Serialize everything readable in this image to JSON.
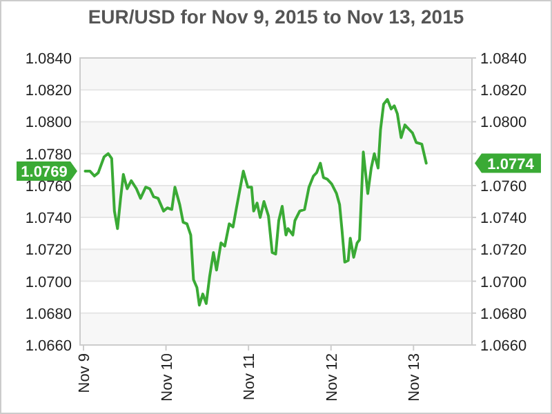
{
  "chart_data": {
    "type": "line",
    "title": "EUR/USD for Nov 9, 2015 to Nov 13, 2015",
    "x": [
      "2015-11-09T00:30",
      "2015-11-09T01:54",
      "2015-11-09T03:12",
      "2015-11-09T04:18",
      "2015-11-09T06:00",
      "2015-11-09T07:12",
      "2015-11-09T08:12",
      "2015-11-09T09:00",
      "2015-11-09T09:54",
      "2015-11-09T10:48",
      "2015-11-09T11:36",
      "2015-11-09T12:42",
      "2015-11-09T13:54",
      "2015-11-09T15:24",
      "2015-11-09T16:36",
      "2015-11-09T18:06",
      "2015-11-09T19:18",
      "2015-11-09T20:24",
      "2015-11-09T21:42",
      "2015-11-09T23:18",
      "2015-11-10T00:24",
      "2015-11-10T01:42",
      "2015-11-10T02:36",
      "2015-11-10T04:00",
      "2015-11-10T05:00",
      "2015-11-10T06:06",
      "2015-11-10T07:12",
      "2015-11-10T08:00",
      "2015-11-10T09:00",
      "2015-11-10T09:42",
      "2015-11-10T10:42",
      "2015-11-10T11:42",
      "2015-11-10T12:42",
      "2015-11-10T13:48",
      "2015-11-10T14:42",
      "2015-11-10T16:00",
      "2015-11-10T17:06",
      "2015-11-10T18:24",
      "2015-11-10T19:30",
      "2015-11-10T20:30",
      "2015-11-10T22:30",
      "2015-11-10T23:48",
      "2015-11-11T00:54",
      "2015-11-11T01:30",
      "2015-11-11T02:30",
      "2015-11-11T03:24",
      "2015-11-11T04:30",
      "2015-11-11T05:48",
      "2015-11-11T06:54",
      "2015-11-11T07:54",
      "2015-11-11T08:48",
      "2015-11-11T09:48",
      "2015-11-11T10:54",
      "2015-11-11T11:30",
      "2015-11-11T12:54",
      "2015-11-11T13:30",
      "2015-11-11T14:54",
      "2015-11-11T16:18",
      "2015-11-11T17:36",
      "2015-11-11T18:54",
      "2015-11-11T19:48",
      "2015-11-11T20:54",
      "2015-11-11T21:48",
      "2015-11-11T22:54",
      "2015-11-12T00:12",
      "2015-11-12T01:36",
      "2015-11-12T02:30",
      "2015-11-12T03:12",
      "2015-11-12T04:00",
      "2015-11-12T05:00",
      "2015-11-12T05:36",
      "2015-11-12T06:36",
      "2015-11-12T07:36",
      "2015-11-12T08:18",
      "2015-11-12T09:24",
      "2015-11-12T10:42",
      "2015-11-12T11:42",
      "2015-11-12T12:36",
      "2015-11-12T13:42",
      "2015-11-12T14:24",
      "2015-11-12T15:18",
      "2015-11-12T16:24",
      "2015-11-12T17:30",
      "2015-11-12T18:24",
      "2015-11-12T19:18",
      "2015-11-12T20:24",
      "2015-11-12T21:30",
      "2015-11-12T22:48",
      "2015-11-12T23:42",
      "2015-11-13T00:48",
      "2015-11-13T02:24",
      "2015-11-13T03:42"
    ],
    "series": [
      {
        "color": "#3aaa35",
        "values": [
          1.0769,
          1.0769,
          1.0766,
          1.0768,
          1.0778,
          1.078,
          1.0777,
          1.0744,
          1.0733,
          1.0752,
          1.0767,
          1.0758,
          1.0763,
          1.0758,
          1.0752,
          1.0759,
          1.0758,
          1.0753,
          1.0752,
          1.0744,
          1.0746,
          1.0745,
          1.0759,
          1.0748,
          1.0737,
          1.0736,
          1.0729,
          1.0701,
          1.0696,
          1.0685,
          1.0692,
          1.0686,
          1.0703,
          1.0718,
          1.0707,
          1.0724,
          1.0722,
          1.0736,
          1.0734,
          1.0746,
          1.0769,
          1.0759,
          1.0759,
          1.0744,
          1.0749,
          1.074,
          1.075,
          1.0741,
          1.0718,
          1.0717,
          1.0738,
          1.0747,
          1.0729,
          1.0733,
          1.0729,
          1.0738,
          1.0744,
          1.0745,
          1.0759,
          1.0766,
          1.0768,
          1.0774,
          1.0765,
          1.0764,
          1.0761,
          1.0755,
          1.0748,
          1.0732,
          1.0712,
          1.0713,
          1.0727,
          1.0715,
          1.0724,
          1.0726,
          1.0781,
          1.0755,
          1.0771,
          1.078,
          1.0771,
          1.0795,
          1.0811,
          1.0814,
          1.0808,
          1.081,
          1.0805,
          1.079,
          1.0798,
          1.0795,
          1.0793,
          1.0787,
          1.0786,
          1.0774
        ]
      }
    ],
    "xlim": [
      "2015-11-08T23:00",
      "2015-11-13T17:00"
    ],
    "xticks": [
      {
        "value": "2015-11-09",
        "label": "Nov 9"
      },
      {
        "value": "2015-11-10",
        "label": "Nov 10"
      },
      {
        "value": "2015-11-11",
        "label": "Nov 11"
      },
      {
        "value": "2015-11-12",
        "label": "Nov 12"
      },
      {
        "value": "2015-11-13",
        "label": "Nov 13"
      }
    ],
    "ylim": [
      1.066,
      1.084
    ],
    "yticks": [
      {
        "value": 1.066,
        "label": "1.0660"
      },
      {
        "value": 1.068,
        "label": "1.0680"
      },
      {
        "value": 1.07,
        "label": "1.0700"
      },
      {
        "value": 1.072,
        "label": "1.0720"
      },
      {
        "value": 1.074,
        "label": "1.0740"
      },
      {
        "value": 1.076,
        "label": "1.0760"
      },
      {
        "value": 1.078,
        "label": "1.0780"
      },
      {
        "value": 1.08,
        "label": "1.0800"
      },
      {
        "value": 1.082,
        "label": "1.0820"
      },
      {
        "value": 1.084,
        "label": "1.0840"
      }
    ],
    "y2lim": [
      1.066,
      1.084
    ],
    "y2ticks": [
      {
        "value": 1.066,
        "label": "1.0660"
      },
      {
        "value": 1.068,
        "label": "1.0680"
      },
      {
        "value": 1.07,
        "label": "1.0700"
      },
      {
        "value": 1.072,
        "label": "1.0720"
      },
      {
        "value": 1.074,
        "label": "1.0740"
      },
      {
        "value": 1.076,
        "label": "1.0760"
      },
      {
        "value": 1.078,
        "label": null
      },
      {
        "value": 1.08,
        "label": "1.0800"
      },
      {
        "value": 1.082,
        "label": "1.0820"
      },
      {
        "value": 1.084,
        "label": "1.0840"
      }
    ],
    "grid": "y",
    "marker": "none",
    "line_style": "solid",
    "annotations": [
      "1.0769",
      "1.0774"
    ]
  }
}
